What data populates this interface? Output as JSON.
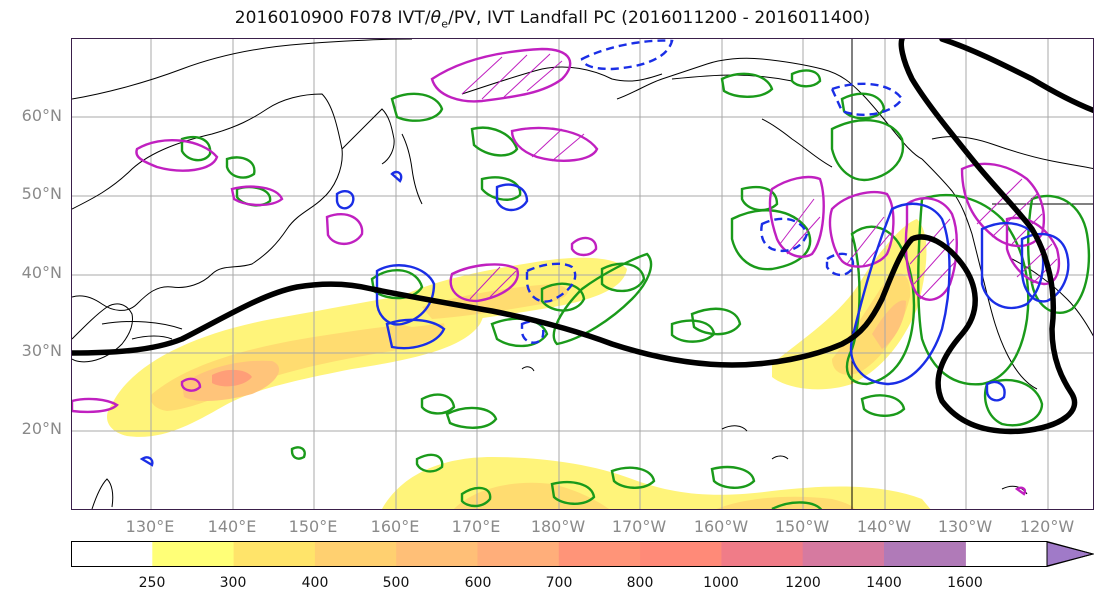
{
  "title": {
    "prefix": "2016010900 F078 IVT/",
    "theta": "θ",
    "theta_sub": "e",
    "suffix": "/PV, IVT Landfall PC (2016011200 - 2016011400)"
  },
  "map": {
    "lat_labels": [
      "60°N",
      "50°N",
      "40°N",
      "30°N",
      "20°N"
    ],
    "lon_labels": [
      "130°E",
      "140°E",
      "150°E",
      "160°E",
      "170°E",
      "180°W",
      "170°W",
      "160°W",
      "150°W",
      "140°W",
      "130°W",
      "120°W"
    ],
    "contour_colors": {
      "ivt_landfall_pc": "#000000",
      "theta_e": "#1a9a1a",
      "pv_positive": "#c020c0",
      "pv_negative": "#1a2ee6",
      "coastline": "#000000"
    }
  },
  "colorbar": {
    "levels": [
      "250",
      "300",
      "400",
      "500",
      "600",
      "700",
      "800",
      "1000",
      "1200",
      "1400",
      "1600"
    ],
    "colors": [
      "#ffffff",
      "#ffff77",
      "#ffe46a",
      "#ffd070",
      "#ffbf77",
      "#ffae7a",
      "#ff9478",
      "#ff8a78",
      "#f07c88",
      "#d67aa0",
      "#b07ab8",
      "#a07ac8"
    ],
    "extend": "max"
  }
}
